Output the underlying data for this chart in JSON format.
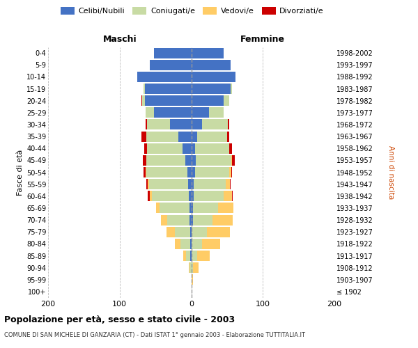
{
  "age_groups": [
    "100+",
    "95-99",
    "90-94",
    "85-89",
    "80-84",
    "75-79",
    "70-74",
    "65-69",
    "60-64",
    "55-59",
    "50-54",
    "45-49",
    "40-44",
    "35-39",
    "30-34",
    "25-29",
    "20-24",
    "15-19",
    "10-14",
    "5-9",
    "0-4"
  ],
  "birth_years": [
    "≤ 1902",
    "1903-1907",
    "1908-1912",
    "1913-1917",
    "1918-1922",
    "1923-1927",
    "1928-1932",
    "1933-1937",
    "1938-1942",
    "1943-1947",
    "1948-1952",
    "1953-1957",
    "1958-1962",
    "1963-1967",
    "1968-1972",
    "1973-1977",
    "1978-1982",
    "1983-1987",
    "1988-1992",
    "1993-1997",
    "1998-2002"
  ],
  "colors": {
    "celibi": "#4472C4",
    "coniugati": "#c8dba4",
    "vedovi": "#FFCC66",
    "divorziati": "#CC0000"
  },
  "males": {
    "celibi": [
      0,
      0,
      0,
      1,
      1,
      1,
      2,
      2,
      3,
      4,
      5,
      8,
      12,
      18,
      30,
      52,
      65,
      65,
      75,
      58,
      52
    ],
    "coniugati": [
      0,
      0,
      2,
      6,
      14,
      22,
      32,
      42,
      52,
      55,
      58,
      55,
      50,
      45,
      32,
      12,
      4,
      2,
      0,
      0,
      0
    ],
    "vedovi": [
      0,
      0,
      1,
      4,
      8,
      12,
      8,
      5,
      3,
      2,
      1,
      0,
      0,
      0,
      0,
      0,
      0,
      0,
      0,
      0,
      0
    ],
    "divorziati": [
      0,
      0,
      0,
      0,
      0,
      0,
      0,
      0,
      3,
      2,
      3,
      5,
      4,
      7,
      2,
      0,
      1,
      0,
      0,
      0,
      0
    ]
  },
  "females": {
    "nubili": [
      0,
      0,
      0,
      0,
      0,
      0,
      2,
      2,
      3,
      3,
      5,
      6,
      5,
      8,
      15,
      25,
      45,
      55,
      62,
      55,
      45
    ],
    "coniugate": [
      0,
      0,
      2,
      8,
      15,
      22,
      28,
      35,
      42,
      45,
      48,
      50,
      48,
      42,
      36,
      20,
      8,
      2,
      0,
      0,
      0
    ],
    "vedove": [
      0,
      2,
      8,
      18,
      25,
      32,
      28,
      22,
      12,
      6,
      3,
      1,
      0,
      0,
      0,
      0,
      0,
      0,
      0,
      0,
      0
    ],
    "divorziate": [
      0,
      0,
      0,
      0,
      0,
      0,
      0,
      0,
      1,
      1,
      1,
      4,
      4,
      3,
      2,
      0,
      0,
      0,
      0,
      0,
      0
    ]
  },
  "title": "Popolazione per età, sesso e stato civile - 2003",
  "subtitle": "COMUNE DI SAN MICHELE DI GANZARIA (CT) - Dati ISTAT 1° gennaio 2003 - Elaborazione TUTTITALIA.IT",
  "xlabel_left": "Maschi",
  "xlabel_right": "Femmine",
  "ylabel": "Fasce di età",
  "ylabel_right": "Anni di nascita",
  "xlim": 200,
  "bg_color": "#ffffff",
  "grid_color": "#cccccc"
}
